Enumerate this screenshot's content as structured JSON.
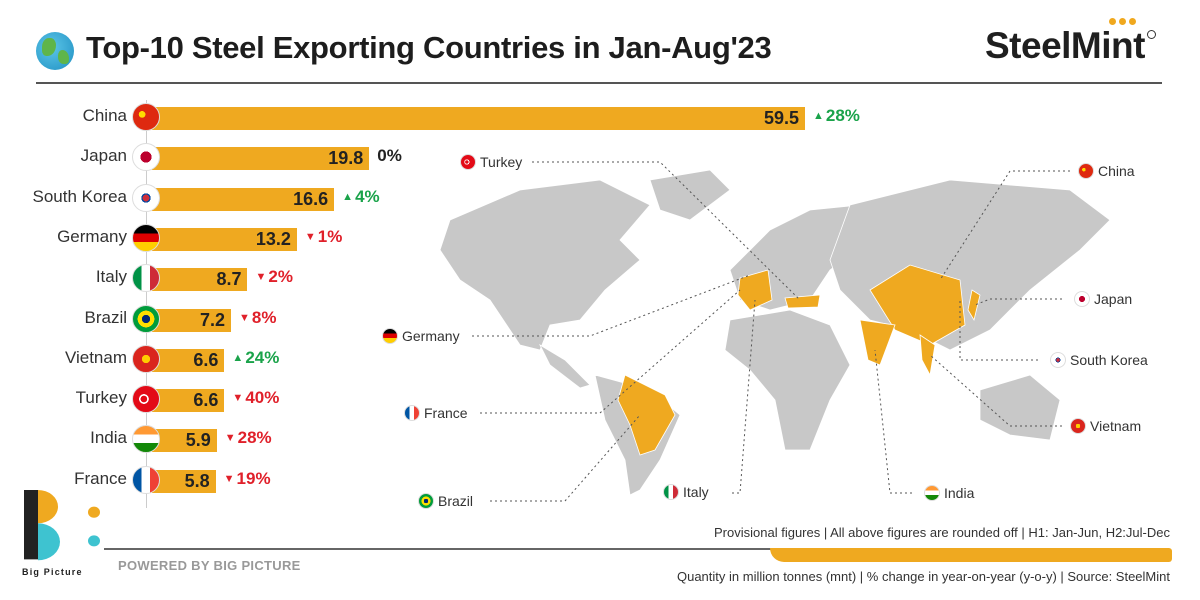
{
  "header": {
    "title": "Top-10 Steel Exporting Countries in Jan-Aug'23",
    "brand": "SteelMint",
    "globe_icon": "globe-icon"
  },
  "colors": {
    "bar": "#efa920",
    "up": "#1aa34a",
    "down": "#e0202a",
    "map_land": "#c8c8c8",
    "map_highlight": "#efa920"
  },
  "chart_data": {
    "type": "bar",
    "orientation": "horizontal",
    "categories": [
      "China",
      "Japan",
      "South Korea",
      "Germany",
      "Italy",
      "Brazil",
      "Vietnam",
      "Turkey",
      "India",
      "France"
    ],
    "values": [
      59.5,
      19.8,
      16.6,
      13.2,
      8.7,
      7.2,
      6.6,
      6.6,
      5.9,
      5.8
    ],
    "value_labels": [
      "59.5",
      "19.8",
      "16.6",
      "13.2",
      "8.7",
      "7.2",
      "6.6",
      "6.6",
      "5.9",
      "5.8"
    ],
    "yoy_change": [
      "28%",
      "0%",
      "4%",
      "1%",
      "2%",
      "8%",
      "24%",
      "40%",
      "28%",
      "19%"
    ],
    "yoy_direction": [
      "up",
      "flat",
      "up",
      "down",
      "down",
      "down",
      "up",
      "down",
      "down",
      "down"
    ],
    "unit": "million tonnes"
  },
  "map": {
    "labels": [
      "Turkey",
      "China",
      "Japan",
      "South Korea",
      "Vietnam",
      "India",
      "Italy",
      "Brazil",
      "France",
      "Germany"
    ]
  },
  "footer": {
    "note1": "Provisional figures | All above figures are rounded off | H1: Jan-Jun, H2:Jul-Dec",
    "note2": "Quantity in million tonnes (mnt) | % change in year-on-year (y-o-y) | Source: SteelMint",
    "powered": "POWERED BY BIG PICTURE",
    "bp_logo": "Big Picture"
  }
}
